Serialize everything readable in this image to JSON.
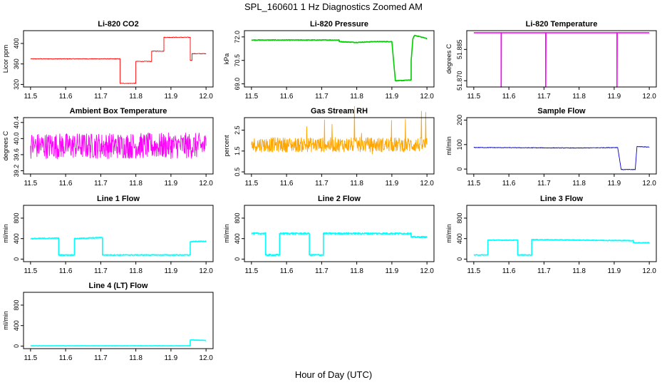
{
  "figure": {
    "title": "SPL_160601  1 Hz Diagnostics Zoomed AM",
    "xlabel": "Hour of Day (UTC)"
  },
  "chart_data": [
    {
      "type": "line",
      "title": "Li-820 CO2",
      "ylabel": "Licor ppm",
      "color": "#ff0000",
      "xlim": [
        11.48,
        12.02
      ],
      "ylim": [
        315,
        425
      ],
      "xticks": [
        "11.5",
        "11.6",
        "11.7",
        "11.8",
        "11.9",
        "12.0"
      ],
      "yticks": [
        "320",
        "360",
        "400"
      ],
      "noise": 0.6,
      "points": [
        [
          11.5,
          370
        ],
        [
          11.755,
          370
        ],
        [
          11.755,
          322
        ],
        [
          11.8,
          322
        ],
        [
          11.8,
          365
        ],
        [
          11.845,
          365
        ],
        [
          11.845,
          385
        ],
        [
          11.88,
          385
        ],
        [
          11.88,
          412
        ],
        [
          11.955,
          412
        ],
        [
          11.955,
          367
        ],
        [
          11.96,
          367
        ],
        [
          11.96,
          380
        ],
        [
          12.0,
          380
        ]
      ]
    },
    {
      "type": "line",
      "title": "Li-820 Pressure",
      "ylabel": "kPa",
      "color": "#00cc00",
      "xlim": [
        11.48,
        12.02
      ],
      "ylim": [
        68.8,
        72.4
      ],
      "xticks": [
        "11.5",
        "11.6",
        "11.7",
        "11.8",
        "11.9",
        "12.0"
      ],
      "yticks": [
        "69.0",
        "70.5",
        "72.0"
      ],
      "noise": 0.02,
      "points": [
        [
          11.5,
          71.8
        ],
        [
          11.75,
          71.8
        ],
        [
          11.75,
          71.7
        ],
        [
          11.8,
          71.65
        ],
        [
          11.85,
          71.7
        ],
        [
          11.9,
          71.7
        ],
        [
          11.91,
          69.2
        ],
        [
          11.92,
          69.2
        ],
        [
          11.955,
          69.25
        ],
        [
          11.955,
          70.5
        ],
        [
          11.96,
          71.9
        ],
        [
          11.965,
          72.1
        ],
        [
          12.0,
          71.9
        ]
      ]
    },
    {
      "type": "line",
      "title": "Li-820 Temperature",
      "ylabel": "degrees C",
      "color": "#ff00ff",
      "xlim": [
        11.48,
        12.02
      ],
      "ylim": [
        51.867,
        51.894
      ],
      "xticks": [
        "11.5",
        "11.6",
        "11.7",
        "11.8",
        "11.9",
        "12.0"
      ],
      "yticks": [
        "51.870",
        "51.885"
      ],
      "noise": 0,
      "points": [
        [
          11.5,
          51.893
        ],
        [
          11.578,
          51.893
        ],
        [
          11.578,
          51.867
        ],
        [
          11.5785,
          51.893
        ],
        [
          11.705,
          51.893
        ],
        [
          11.705,
          51.867
        ],
        [
          11.7055,
          51.893
        ],
        [
          11.908,
          51.893
        ],
        [
          11.908,
          51.867
        ],
        [
          11.9085,
          51.893
        ],
        [
          12.0,
          51.893
        ]
      ]
    },
    {
      "type": "line",
      "title": "Ambient Box Temperature",
      "ylabel": "degrees C",
      "color": "#ff00ff",
      "xlim": [
        11.48,
        12.02
      ],
      "ylim": [
        39.12,
        40.52
      ],
      "xticks": [
        "11.5",
        "11.6",
        "11.7",
        "11.8",
        "11.9",
        "12.0"
      ],
      "yticks": [
        "39.2",
        "39.6",
        "40.0",
        "40.4"
      ],
      "noise": 0.32,
      "points": [
        [
          11.5,
          39.82
        ],
        [
          12.0,
          39.82
        ]
      ]
    },
    {
      "type": "line",
      "title": "Gas Stream RH",
      "ylabel": "percent",
      "color": "#ffa500",
      "xlim": [
        11.48,
        12.02
      ],
      "ylim": [
        0.4,
        3.1
      ],
      "xticks": [
        "11.5",
        "11.6",
        "11.7",
        "11.8",
        "11.9",
        "12.0"
      ],
      "yticks": [
        "0.5",
        "1.5",
        "2.5"
      ],
      "noise": 0.35,
      "points": [
        [
          11.5,
          1.8
        ],
        [
          12.0,
          1.8
        ]
      ]
    },
    {
      "type": "line",
      "title": "Sample Flow",
      "ylabel": "ml/min",
      "color": "#0000cc",
      "xlim": [
        11.48,
        12.02
      ],
      "ylim": [
        -20,
        210
      ],
      "xticks": [
        "11.5",
        "11.6",
        "11.7",
        "11.8",
        "11.9",
        "12.0"
      ],
      "yticks": [
        "0",
        "100",
        "200"
      ],
      "noise": 1.2,
      "points": [
        [
          11.5,
          88
        ],
        [
          11.8,
          86
        ],
        [
          11.91,
          88
        ],
        [
          11.92,
          -2
        ],
        [
          11.96,
          -2
        ],
        [
          11.965,
          92
        ],
        [
          12.0,
          90
        ]
      ]
    },
    {
      "type": "line",
      "title": "Line 1 Flow",
      "ylabel": "ml/min",
      "color": "#00ffff",
      "xlim": [
        11.48,
        12.02
      ],
      "ylim": [
        -50,
        1050
      ],
      "xticks": [
        "11.5",
        "11.6",
        "11.7",
        "11.8",
        "11.9",
        "12.0"
      ],
      "yticks": [
        "0",
        "400",
        "800"
      ],
      "noise": 8,
      "points": [
        [
          11.5,
          400
        ],
        [
          11.58,
          410
        ],
        [
          11.58,
          80
        ],
        [
          11.625,
          80
        ],
        [
          11.625,
          400
        ],
        [
          11.705,
          420
        ],
        [
          11.705,
          80
        ],
        [
          11.955,
          80
        ],
        [
          11.955,
          340
        ],
        [
          12.0,
          350
        ]
      ]
    },
    {
      "type": "line",
      "title": "Line 2 Flow",
      "ylabel": "ml/min",
      "color": "#00ffff",
      "xlim": [
        11.48,
        12.02
      ],
      "ylim": [
        -50,
        1050
      ],
      "xticks": [
        "11.5",
        "11.6",
        "11.7",
        "11.8",
        "11.9",
        "12.0"
      ],
      "yticks": [
        "0",
        "400",
        "800"
      ],
      "noise": 14,
      "points": [
        [
          11.5,
          500
        ],
        [
          11.54,
          500
        ],
        [
          11.54,
          80
        ],
        [
          11.58,
          80
        ],
        [
          11.58,
          500
        ],
        [
          11.665,
          500
        ],
        [
          11.665,
          80
        ],
        [
          11.705,
          80
        ],
        [
          11.705,
          500
        ],
        [
          11.955,
          500
        ],
        [
          11.955,
          430
        ],
        [
          12.0,
          430
        ]
      ]
    },
    {
      "type": "line",
      "title": "Line 3 Flow",
      "ylabel": "ml/min",
      "color": "#00ffff",
      "xlim": [
        11.48,
        12.02
      ],
      "ylim": [
        -50,
        1050
      ],
      "xticks": [
        "11.5",
        "11.6",
        "11.7",
        "11.8",
        "11.9",
        "12.0"
      ],
      "yticks": [
        "0",
        "400",
        "800"
      ],
      "noise": 7,
      "points": [
        [
          11.5,
          80
        ],
        [
          11.54,
          80
        ],
        [
          11.54,
          370
        ],
        [
          11.625,
          370
        ],
        [
          11.625,
          80
        ],
        [
          11.665,
          80
        ],
        [
          11.665,
          380
        ],
        [
          11.955,
          360
        ],
        [
          11.955,
          320
        ],
        [
          12.0,
          320
        ]
      ]
    },
    {
      "type": "line",
      "title": "Line 4 (LT) Flow",
      "ylabel": "ml/min",
      "color": "#00ffff",
      "xlim": [
        11.48,
        12.02
      ],
      "ylim": [
        -50,
        1050
      ],
      "xticks": [
        "11.5",
        "11.6",
        "11.7",
        "11.8",
        "11.9",
        "12.0"
      ],
      "yticks": [
        "0",
        "400",
        "800"
      ],
      "noise": 3,
      "points": [
        [
          11.5,
          5
        ],
        [
          11.955,
          5
        ],
        [
          11.955,
          120
        ],
        [
          12.0,
          110
        ]
      ]
    }
  ]
}
